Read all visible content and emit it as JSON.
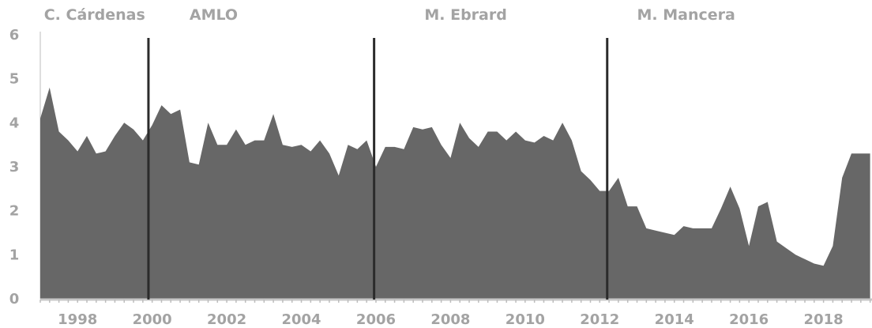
{
  "chart_data": {
    "type": "area",
    "title": "",
    "xlabel": "",
    "ylabel": "",
    "xlim": [
      1997.0,
      2019.3
    ],
    "ylim": [
      0,
      6
    ],
    "grid": false,
    "legend": "none",
    "colors": {
      "fill": "#676767",
      "divider": "#2b2b2b",
      "text": "#a3a3a3"
    },
    "y_ticks": [
      "0",
      "1",
      "2",
      "3",
      "4",
      "5",
      "6"
    ],
    "x_ticks": [
      "1998",
      "2000",
      "2002",
      "2004",
      "2006",
      "2008",
      "2010",
      "2012",
      "2014",
      "2016",
      "2018"
    ],
    "annotations": [
      {
        "label": "C. Cárdenas",
        "year": 1997.1
      },
      {
        "label": "AMLO",
        "year": 2001.0
      },
      {
        "label": "M. Ebrard",
        "year": 2007.3
      },
      {
        "label": "M. Mancera",
        "year": 2013.0
      }
    ],
    "dividers": [
      1999.9,
      2005.95,
      2012.2
    ],
    "series": [
      {
        "x": [
          1997.0,
          1997.25,
          1997.5,
          1997.75,
          1998.0,
          1998.25,
          1998.5,
          1998.75,
          1999.0,
          1999.25,
          1999.5,
          1999.75,
          2000.0,
          2000.25,
          2000.5,
          2000.75,
          2001.0,
          2001.25,
          2001.5,
          2001.75,
          2002.0,
          2002.25,
          2002.5,
          2002.75,
          2003.0,
          2003.25,
          2003.5,
          2003.75,
          2004.0,
          2004.25,
          2004.5,
          2004.75,
          2005.0,
          2005.25,
          2005.5,
          2005.75,
          2006.0,
          2006.25,
          2006.5,
          2006.75,
          2007.0,
          2007.25,
          2007.5,
          2007.75,
          2008.0,
          2008.25,
          2008.5,
          2008.75,
          2009.0,
          2009.25,
          2009.5,
          2009.75,
          2010.0,
          2010.25,
          2010.5,
          2010.75,
          2011.0,
          2011.25,
          2011.5,
          2011.75,
          2012.0,
          2012.25,
          2012.5,
          2012.75,
          2013.0,
          2013.25,
          2013.5,
          2013.75,
          2014.0,
          2014.25,
          2014.5,
          2014.75,
          2015.0,
          2015.25,
          2015.5,
          2015.75,
          2016.0,
          2016.25,
          2016.5,
          2016.75,
          2017.0,
          2017.25,
          2017.5,
          2017.75,
          2018.0,
          2018.25,
          2018.5,
          2018.75,
          2019.0,
          2019.25
        ],
        "values": [
          4.1,
          4.8,
          3.8,
          3.6,
          3.35,
          3.7,
          3.3,
          3.35,
          3.7,
          4.0,
          3.85,
          3.6,
          3.95,
          4.4,
          4.2,
          4.3,
          3.1,
          3.05,
          4.0,
          3.5,
          3.5,
          3.85,
          3.5,
          3.6,
          3.6,
          4.2,
          3.5,
          3.45,
          3.5,
          3.35,
          3.6,
          3.3,
          2.8,
          3.5,
          3.4,
          3.6,
          3.0,
          3.45,
          3.45,
          3.4,
          3.9,
          3.85,
          3.9,
          3.5,
          3.2,
          4.0,
          3.65,
          3.45,
          3.8,
          3.8,
          3.6,
          3.8,
          3.6,
          3.55,
          3.7,
          3.6,
          4.0,
          3.6,
          2.9,
          2.7,
          2.45,
          2.45,
          2.75,
          2.1,
          2.1,
          1.6,
          1.55,
          1.5,
          1.45,
          1.65,
          1.6,
          1.6,
          1.6,
          2.05,
          2.55,
          2.05,
          1.2,
          2.1,
          2.2,
          1.3,
          1.15,
          1.0,
          0.9,
          0.8,
          0.75,
          1.2,
          2.75,
          3.3,
          3.3,
          3.3
        ]
      }
    ]
  }
}
